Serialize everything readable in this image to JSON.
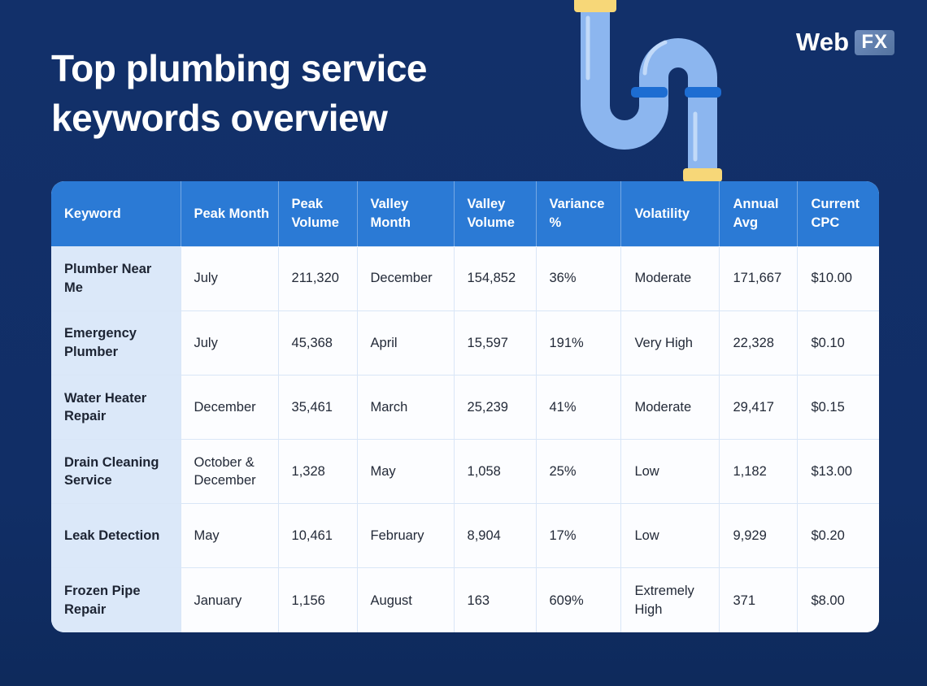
{
  "title": {
    "line1": "Top plumbing service",
    "line2": "keywords overview"
  },
  "logo": {
    "web": "Web",
    "fx": "FX"
  },
  "colors": {
    "background": "#112e66",
    "header_blue": "#2b7ad5",
    "keyword_cell_blue": "#dbe8f9",
    "cell_white": "#fcfdff",
    "grid_line": "#d9e6f7",
    "pipe_blue": "#8cb6ef",
    "pipe_highlight": "#c8def9",
    "pipe_band_blue": "#1d6dd2",
    "pipe_cap_yellow": "#f7d778",
    "logo_fx_box": "#5e7daf"
  },
  "illustration": {
    "name": "plumbing-pipe-p-trap"
  },
  "chart_data": {
    "type": "table",
    "title": "Top plumbing service keywords overview",
    "columns": [
      "Keyword",
      "Peak Month",
      "Peak Volume",
      "Valley Month",
      "Valley Volume",
      "Variance %",
      "Volatility",
      "Annual Avg",
      "Current CPC"
    ],
    "rows": [
      [
        "Plumber Near Me",
        "July",
        "211,320",
        "December",
        "154,852",
        "36%",
        "Moderate",
        "171,667",
        "$10.00"
      ],
      [
        "Emergency Plumber",
        "July",
        "45,368",
        "April",
        "15,597",
        "191%",
        "Very High",
        "22,328",
        "$0.10"
      ],
      [
        "Water Heater Repair",
        "December",
        "35,461",
        "March",
        "25,239",
        "41%",
        "Moderate",
        "29,417",
        "$0.15"
      ],
      [
        "Drain Cleaning Service",
        "October & December",
        "1,328",
        "May",
        "1,058",
        "25%",
        "Low",
        "1,182",
        "$13.00"
      ],
      [
        "Leak Detection",
        "May",
        "10,461",
        "February",
        "8,904",
        "17%",
        "Low",
        "9,929",
        "$0.20"
      ],
      [
        "Frozen Pipe Repair",
        "January",
        "1,156",
        "August",
        "163",
        "609%",
        "Extremely High",
        "371",
        "$8.00"
      ]
    ]
  }
}
